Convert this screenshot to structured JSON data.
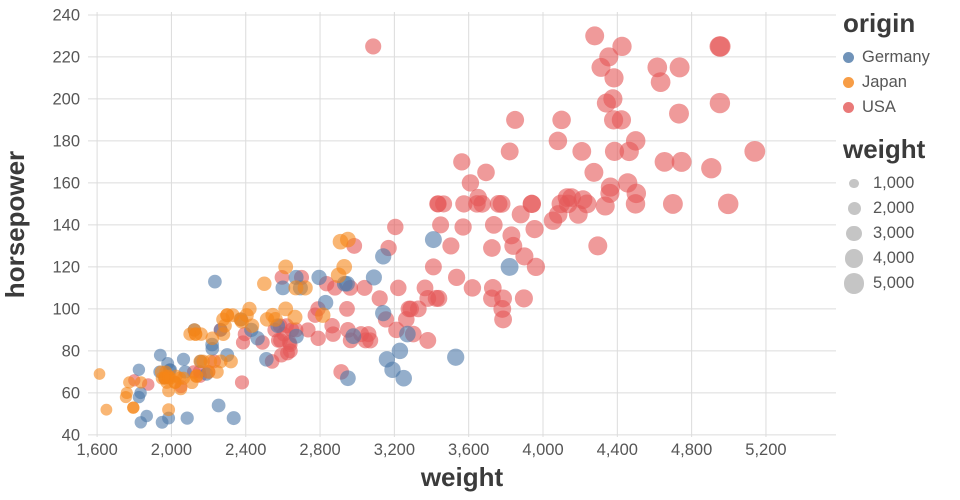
{
  "chart_data": {
    "type": "scatter",
    "title": "",
    "xlabel": "weight",
    "ylabel": "horsepower",
    "x_domain": [
      1551,
      5577
    ],
    "y_domain": [
      39,
      241.4
    ],
    "x_ticks": [
      {
        "v": 1600,
        "label": "1,600"
      },
      {
        "v": 2000,
        "label": "2,000"
      },
      {
        "v": 2400,
        "label": "2,400"
      },
      {
        "v": 2800,
        "label": "2,800"
      },
      {
        "v": 3200,
        "label": "3,200"
      },
      {
        "v": 3600,
        "label": "3,600"
      },
      {
        "v": 4000,
        "label": "4,000"
      },
      {
        "v": 4400,
        "label": "4,400"
      },
      {
        "v": 4800,
        "label": "4,800"
      },
      {
        "v": 5200,
        "label": "5,200"
      }
    ],
    "y_ticks": [
      40,
      60,
      80,
      100,
      120,
      140,
      160,
      180,
      200,
      220,
      240
    ],
    "grid": true,
    "point_opacity": 0.6,
    "size_scale": {
      "type": "sqrt",
      "factor": 0.145
    },
    "legend": {
      "position": "right",
      "color": {
        "title": "origin",
        "items": [
          {
            "label": "Germany",
            "color": "#4c78a8"
          },
          {
            "label": "Japan",
            "color": "#f58518"
          },
          {
            "label": "USA",
            "color": "#e45756"
          }
        ]
      },
      "size": {
        "title": "weight",
        "items": [
          {
            "label": "1,000",
            "value": 1000
          },
          {
            "label": "2,000",
            "value": 2000
          },
          {
            "label": "3,000",
            "value": 3000
          },
          {
            "label": "4,000",
            "value": 4000
          },
          {
            "label": "5,000",
            "value": 5000
          }
        ]
      }
    },
    "series": [
      {
        "name": "USA",
        "color": "#e45756",
        "points": [
          [
            3504,
            130
          ],
          [
            3693,
            165
          ],
          [
            3436,
            150
          ],
          [
            3433,
            150
          ],
          [
            3449,
            140
          ],
          [
            4341,
            198
          ],
          [
            4354,
            220
          ],
          [
            4312,
            215
          ],
          [
            4425,
            225
          ],
          [
            3850,
            190
          ],
          [
            3563,
            170
          ],
          [
            3609,
            160
          ],
          [
            3761,
            150
          ],
          [
            3086,
            225
          ],
          [
            2648,
            90
          ],
          [
            2774,
            97
          ],
          [
            2587,
            85
          ],
          [
            2264,
            90
          ],
          [
            4615,
            215
          ],
          [
            4376,
            200
          ],
          [
            4382,
            210
          ],
          [
            4732,
            193
          ],
          [
            3439,
            105
          ],
          [
            3329,
            100
          ],
          [
            3302,
            88
          ],
          [
            3288,
            100
          ],
          [
            4209,
            175
          ],
          [
            4464,
            175
          ],
          [
            4154,
            153
          ],
          [
            4096,
            150
          ],
          [
            4955,
            225
          ],
          [
            4746,
            170
          ],
          [
            5140,
            175
          ],
          [
            2962,
            110
          ],
          [
            4274,
            165
          ],
          [
            4385,
            175
          ],
          [
            4135,
            150
          ],
          [
            4129,
            153
          ],
          [
            3672,
            150
          ],
          [
            4633,
            208
          ],
          [
            4502,
            155
          ],
          [
            4456,
            160
          ],
          [
            4422,
            190
          ],
          [
            3962,
            120
          ],
          [
            3777,
            150
          ],
          [
            4952,
            198
          ],
          [
            4082,
            145
          ],
          [
            4363,
            158
          ],
          [
            4237,
            150
          ],
          [
            4735,
            215
          ],
          [
            4951,
            225
          ],
          [
            3821,
            175
          ],
          [
            3121,
            105
          ],
          [
            3278,
            100
          ],
          [
            2945,
            100
          ],
          [
            3021,
            88
          ],
          [
            3264,
            95
          ],
          [
            4997,
            150
          ],
          [
            4906,
            167
          ],
          [
            4654,
            170
          ],
          [
            4499,
            180
          ],
          [
            2789,
            100
          ],
          [
            4699,
            150
          ],
          [
            3939,
            150
          ],
          [
            3730,
            110
          ],
          [
            3785,
            105
          ],
          [
            3781,
            100
          ],
          [
            3785,
            95
          ],
          [
            3039,
            110
          ],
          [
            3221,
            110
          ],
          [
            3169,
            129
          ],
          [
            2592,
            78
          ],
          [
            3211,
            90
          ],
          [
            2639,
            83
          ],
          [
            2914,
            70
          ],
          [
            2542,
            75
          ],
          [
            2625,
            79
          ],
          [
            3897,
            105
          ],
          [
            4215,
            152
          ],
          [
            4498,
            150
          ],
          [
            4278,
            230
          ],
          [
            4335,
            149
          ],
          [
            4295,
            130
          ],
          [
            3940,
            150
          ],
          [
            3365,
            110
          ],
          [
            4190,
            145
          ],
          [
            3735,
            140
          ],
          [
            3570,
            139
          ],
          [
            3880,
            145
          ],
          [
            4360,
            155
          ],
          [
            4054,
            142
          ],
          [
            3900,
            125
          ],
          [
            2965,
            85
          ],
          [
            3155,
            95
          ],
          [
            3060,
            88
          ],
          [
            3380,
            105
          ],
          [
            3070,
            85
          ],
          [
            3620,
            110
          ],
          [
            3410,
            120
          ],
          [
            3465,
            150
          ],
          [
            3205,
            139
          ],
          [
            3535,
            115
          ],
          [
            2595,
            115
          ],
          [
            2700,
            115
          ],
          [
            2556,
            90
          ],
          [
            2670,
            90
          ],
          [
            2640,
            80
          ],
          [
            2870,
            88
          ],
          [
            3830,
            135
          ],
          [
            3955,
            138
          ],
          [
            3840,
            130
          ],
          [
            3725,
            129
          ],
          [
            2585,
            92
          ],
          [
            2635,
            84
          ],
          [
            2735,
            90
          ],
          [
            2865,
            92
          ],
          [
            2880,
            110
          ],
          [
            3045,
            85
          ],
          [
            2605,
            88
          ],
          [
            2395,
            88
          ],
          [
            2575,
            85
          ],
          [
            2620,
            92
          ],
          [
            2385,
            84
          ],
          [
            2950,
            90
          ],
          [
            2790,
            86
          ],
          [
            2835,
            112
          ],
          [
            1800,
            66
          ],
          [
            2051,
            63
          ],
          [
            2155,
            68
          ],
          [
            2120,
            70
          ],
          [
            2200,
            70
          ],
          [
            2150,
            70
          ],
          [
            2230,
            75
          ],
          [
            2380,
            65
          ],
          [
            1875,
            64
          ],
          [
            3725,
            105
          ],
          [
            3380,
            85
          ],
          [
            2490,
            84
          ],
          [
            4080,
            180
          ],
          [
            4380,
            190
          ],
          [
            4100,
            190
          ],
          [
            3425,
            105
          ],
          [
            3651,
            153
          ],
          [
            3574,
            150
          ],
          [
            3645,
            150
          ],
          [
            2984,
            130
          ]
        ]
      },
      {
        "name": "Germany",
        "color": "#4c78a8",
        "points": [
          [
            1835,
            46
          ],
          [
            1950,
            46
          ],
          [
            1825,
            58
          ],
          [
            1825,
            71
          ],
          [
            1867,
            49
          ],
          [
            1834,
            60
          ],
          [
            1937,
            70
          ],
          [
            1963,
            67
          ],
          [
            1940,
            78
          ],
          [
            1985,
            48
          ],
          [
            1990,
            71
          ],
          [
            1995,
            71
          ],
          [
            1980,
            74
          ],
          [
            2085,
            48
          ],
          [
            2074,
            70
          ],
          [
            2065,
            76
          ],
          [
            2123,
            90
          ],
          [
            2158,
            75
          ],
          [
            2189,
            69
          ],
          [
            2219,
            83
          ],
          [
            2220,
            81
          ],
          [
            2234,
            113
          ],
          [
            2254,
            54
          ],
          [
            2265,
            90
          ],
          [
            2300,
            78
          ],
          [
            2335,
            48
          ],
          [
            2375,
            95
          ],
          [
            2430,
            90
          ],
          [
            2464,
            86
          ],
          [
            2511,
            76
          ],
          [
            2572,
            92
          ],
          [
            2600,
            110
          ],
          [
            2671,
            115
          ],
          [
            2672,
            87
          ],
          [
            2694,
            110
          ],
          [
            2795,
            115
          ],
          [
            2830,
            103
          ],
          [
            2933,
            112
          ],
          [
            2945,
            112
          ],
          [
            2950,
            67
          ],
          [
            2979,
            87
          ],
          [
            3090,
            115
          ],
          [
            3140,
            98
          ],
          [
            3140,
            125
          ],
          [
            3160,
            76
          ],
          [
            3190,
            71
          ],
          [
            3230,
            80
          ],
          [
            3250,
            67
          ],
          [
            3270,
            88
          ],
          [
            3410,
            133
          ],
          [
            3530,
            77
          ],
          [
            3820,
            120
          ]
        ]
      },
      {
        "name": "Japan",
        "color": "#f58518",
        "points": [
          [
            1613,
            69
          ],
          [
            1650,
            52
          ],
          [
            1755,
            58
          ],
          [
            1760,
            60
          ],
          [
            1773,
            65
          ],
          [
            1795,
            53
          ],
          [
            1795,
            53
          ],
          [
            1836,
            65
          ],
          [
            1945,
            70
          ],
          [
            1950,
            67
          ],
          [
            1965,
            67
          ],
          [
            1965,
            67
          ],
          [
            1970,
            68
          ],
          [
            1970,
            70
          ],
          [
            1975,
            65
          ],
          [
            1985,
            61
          ],
          [
            1985,
            52
          ],
          [
            1985,
            67
          ],
          [
            1985,
            68
          ],
          [
            1995,
            67
          ],
          [
            2019,
            65
          ],
          [
            2020,
            65
          ],
          [
            2025,
            68
          ],
          [
            2045,
            67
          ],
          [
            2050,
            62
          ],
          [
            2065,
            67
          ],
          [
            2100,
            88
          ],
          [
            2110,
            65
          ],
          [
            2124,
            90
          ],
          [
            2130,
            88
          ],
          [
            2130,
            88
          ],
          [
            2135,
            68
          ],
          [
            2135,
            68
          ],
          [
            2155,
            75
          ],
          [
            2160,
            88
          ],
          [
            2171,
            75
          ],
          [
            2200,
            70
          ],
          [
            2210,
            75
          ],
          [
            2220,
            86
          ],
          [
            2245,
            70
          ],
          [
            2265,
            75
          ],
          [
            2278,
            95
          ],
          [
            2279,
            88
          ],
          [
            2288,
            92
          ],
          [
            2300,
            97
          ],
          [
            2300,
            97
          ],
          [
            2320,
            75
          ],
          [
            2330,
            97
          ],
          [
            2372,
            95
          ],
          [
            2379,
            94
          ],
          [
            2405,
            97
          ],
          [
            2420,
            100
          ],
          [
            2434,
            92
          ],
          [
            2500,
            112
          ],
          [
            2515,
            95
          ],
          [
            2545,
            97
          ],
          [
            2560,
            95
          ],
          [
            2615,
            100
          ],
          [
            2615,
            120
          ],
          [
            2665,
            96
          ],
          [
            2670,
            110
          ],
          [
            2720,
            110
          ],
          [
            2815,
            97
          ],
          [
            2900,
            116
          ],
          [
            2910,
            132
          ],
          [
            2930,
            120
          ],
          [
            2950,
            133
          ]
        ]
      }
    ]
  }
}
